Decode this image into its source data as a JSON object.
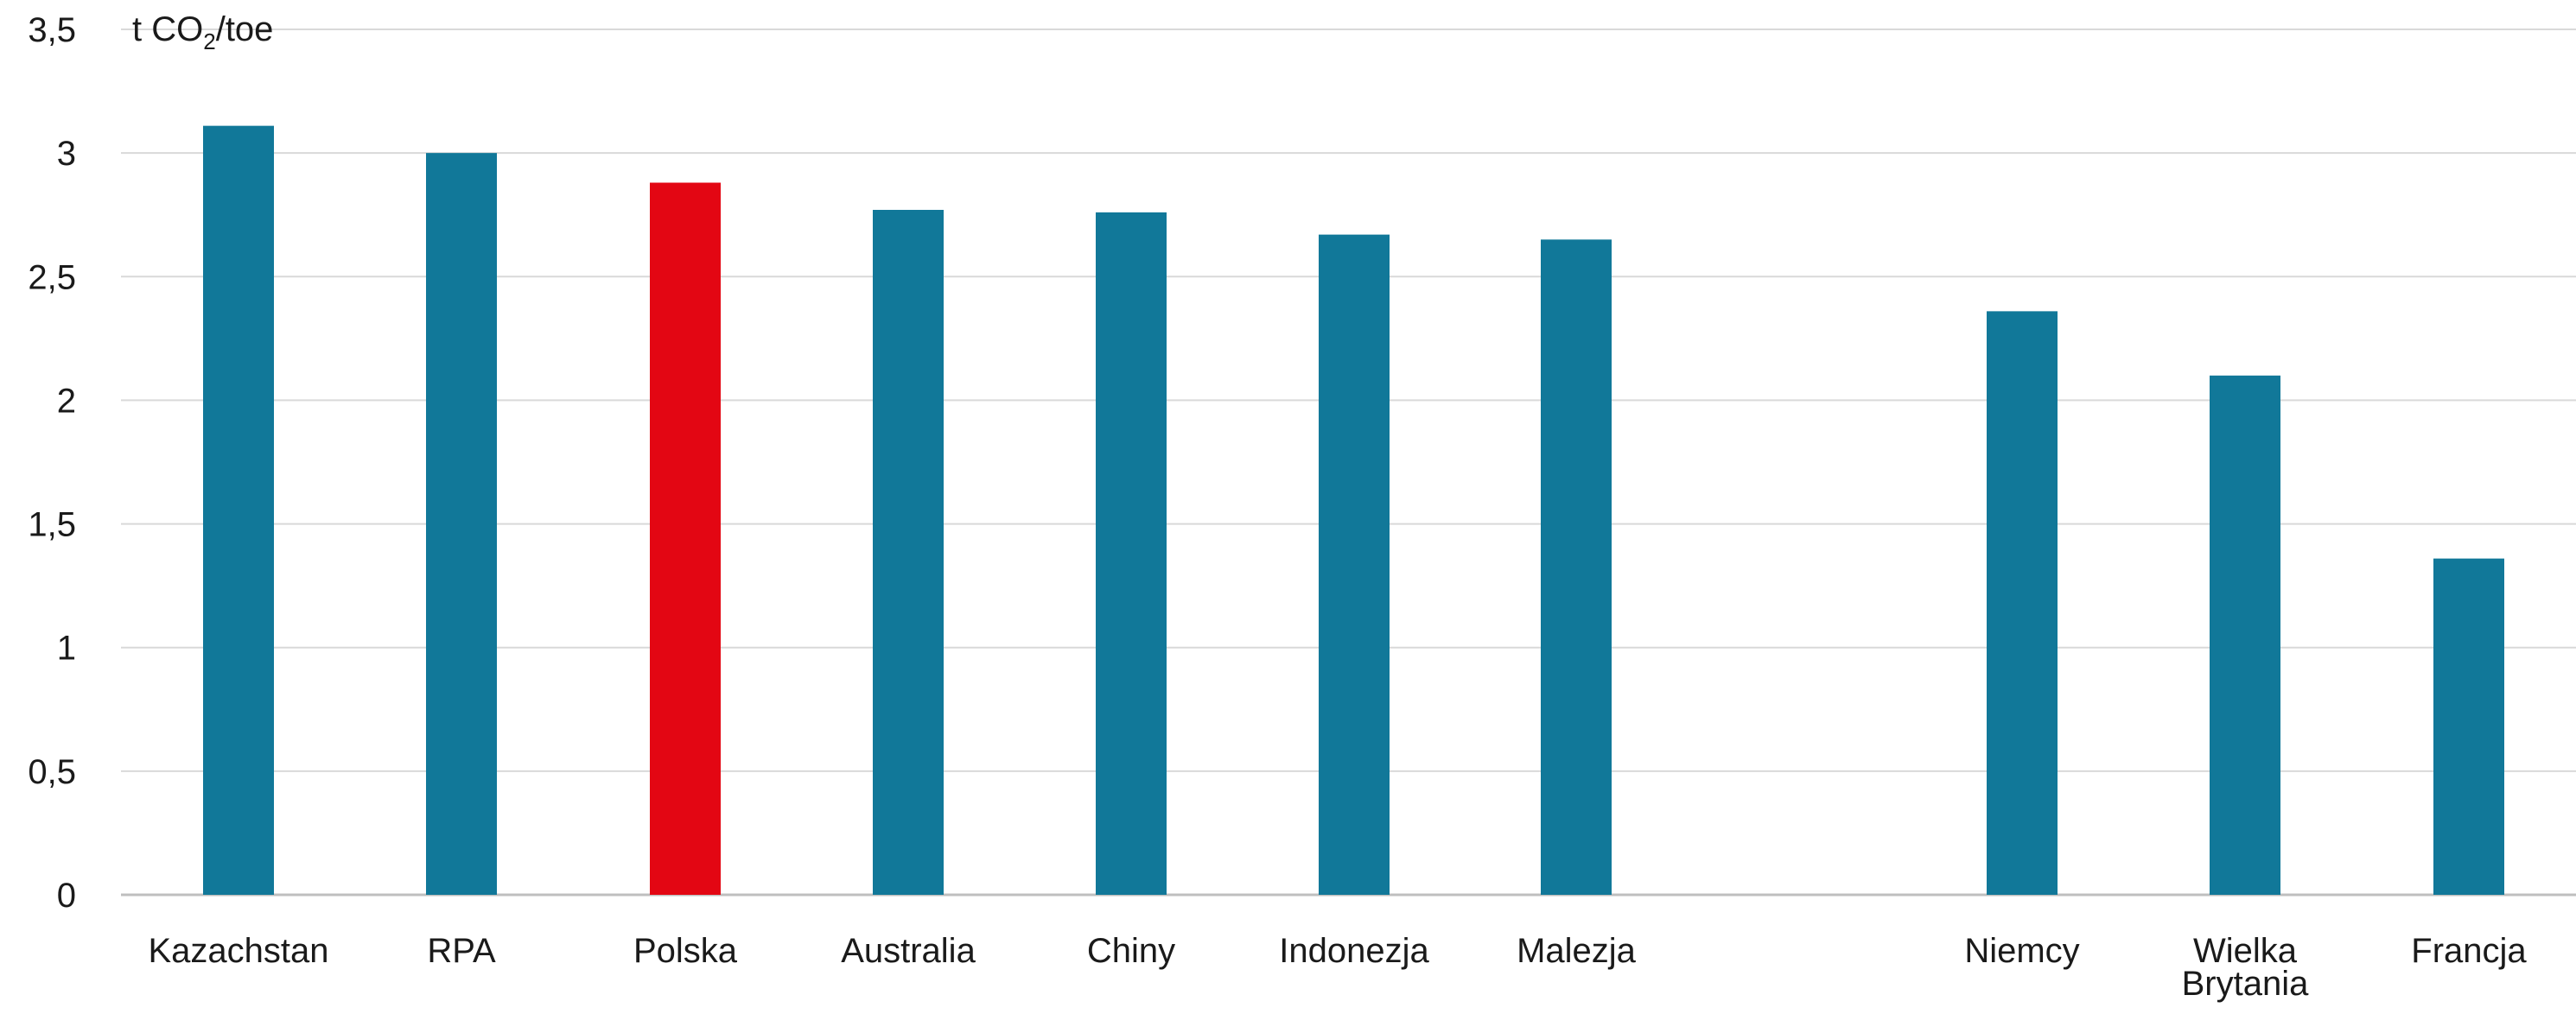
{
  "chart_data": {
    "type": "bar",
    "unit_label": {
      "prefix": "t CO",
      "subscript": "2",
      "suffix": "/toe"
    },
    "categories": [
      [
        "Kazachstan"
      ],
      [
        "RPA"
      ],
      [
        "Polska"
      ],
      [
        "Australia"
      ],
      [
        "Chiny"
      ],
      [
        "Indonezja"
      ],
      [
        "Malezja"
      ],
      [
        "Niemcy"
      ],
      [
        "Wielka",
        "Brytania"
      ],
      [
        "Francja"
      ]
    ],
    "values": [
      3.11,
      3.0,
      2.88,
      2.77,
      2.76,
      2.67,
      2.65,
      2.36,
      2.1,
      1.36
    ],
    "colors": [
      "#117899",
      "#117899",
      "#e30613",
      "#117899",
      "#117899",
      "#117899",
      "#117899",
      "#117899",
      "#117899",
      "#117899"
    ],
    "ylim": [
      0,
      3.5
    ],
    "yticks": [
      {
        "value": 0,
        "label": "0"
      },
      {
        "value": 0.5,
        "label": "0,5"
      },
      {
        "value": 1,
        "label": "1"
      },
      {
        "value": 1.5,
        "label": "1,5"
      },
      {
        "value": 2,
        "label": "2"
      },
      {
        "value": 2.5,
        "label": "2,5"
      },
      {
        "value": 3,
        "label": "3"
      },
      {
        "value": 3.5,
        "label": "3,5"
      }
    ],
    "grid": true,
    "gridline_color": "#d9d9d9",
    "axis_color": "#bfbfbf"
  }
}
